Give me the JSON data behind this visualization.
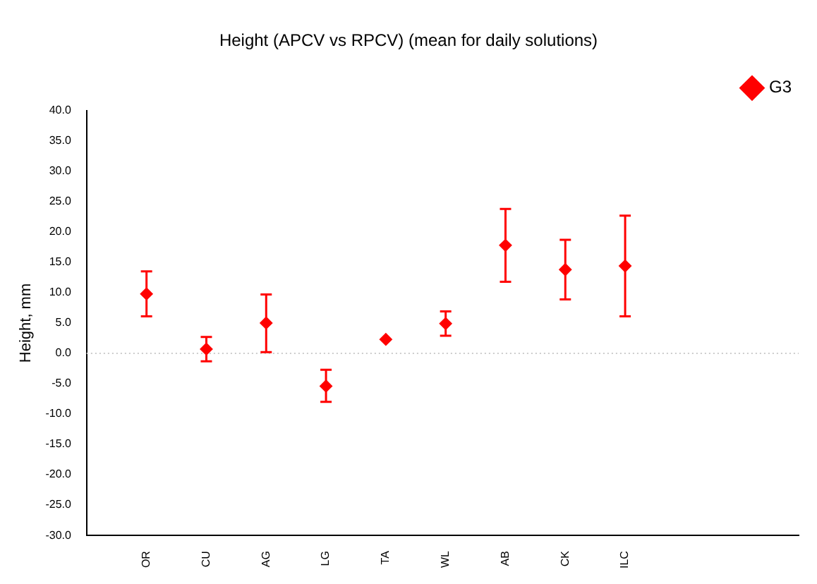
{
  "chart_data": {
    "type": "scatter",
    "title": "Height (APCV vs RPCV) (mean for daily solutions)",
    "ylabel": "Height, mm",
    "categories": [
      "OR",
      "CU",
      "AG",
      "LG",
      "TA",
      "WL",
      "AB",
      "CK",
      "ILC"
    ],
    "series": [
      {
        "name": "G3",
        "color": "#ff0000",
        "values": [
          9.8,
          0.7,
          5.0,
          -5.4,
          2.3,
          4.9,
          17.8,
          13.8,
          14.4
        ],
        "errors": [
          [
            6.1,
            13.5
          ],
          [
            -1.3,
            2.7
          ],
          [
            0.2,
            9.7
          ],
          [
            -8.0,
            -2.7
          ],
          null,
          [
            2.9,
            6.9
          ],
          [
            11.8,
            23.8
          ],
          [
            8.9,
            18.7
          ],
          [
            6.1,
            22.7
          ]
        ]
      }
    ],
    "ylim": [
      -30,
      40
    ],
    "yticks": [
      {
        "value": -30,
        "label": "-30.0"
      },
      {
        "value": -25,
        "label": "-25.0"
      },
      {
        "value": -20,
        "label": "-20.0"
      },
      {
        "value": -15,
        "label": "-15.0"
      },
      {
        "value": -10,
        "label": "-10.0"
      },
      {
        "value": -5,
        "label": "-5.0"
      },
      {
        "value": 0,
        "label": "0.0"
      },
      {
        "value": 5,
        "label": "5.0"
      },
      {
        "value": 10,
        "label": "10.0"
      },
      {
        "value": 15,
        "label": "15.0"
      },
      {
        "value": 20,
        "label": "20.0"
      },
      {
        "value": 25,
        "label": "25.0"
      },
      {
        "value": 30,
        "label": "30.0"
      },
      {
        "value": 35,
        "label": "35.0"
      },
      {
        "value": 40,
        "label": "40.0"
      }
    ],
    "ref_lines": [
      {
        "axis": "y",
        "value": 0,
        "color": "#cccccc",
        "line_style": "dotted"
      }
    ],
    "legend": "top right",
    "marker": "diamond",
    "grid": false
  }
}
